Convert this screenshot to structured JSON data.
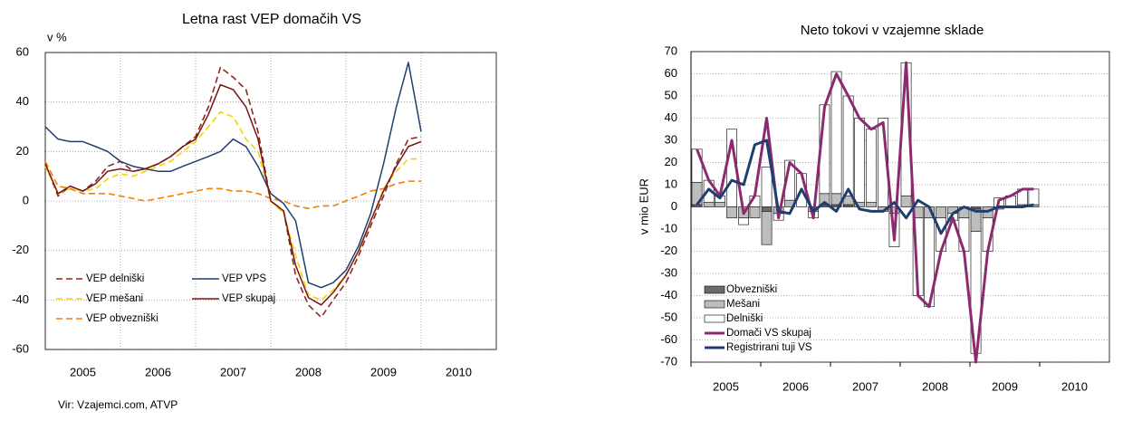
{
  "chart_data": [
    {
      "type": "line",
      "title": "Letna rast VEP domačih VS",
      "y_label": "v %",
      "source": "Vir: Vzajemci.com, ATVP",
      "x": [
        2005,
        2005.17,
        2005.33,
        2005.5,
        2005.67,
        2005.83,
        2006,
        2006.17,
        2006.33,
        2006.5,
        2006.67,
        2006.83,
        2007,
        2007.17,
        2007.33,
        2007.5,
        2007.67,
        2007.83,
        2008,
        2008.17,
        2008.33,
        2008.5,
        2008.67,
        2008.83,
        2009,
        2009.17,
        2009.33,
        2009.5,
        2009.67,
        2009.83,
        2010
      ],
      "xlim": [
        2005,
        2011
      ],
      "xticks": [
        2005,
        2006,
        2007,
        2008,
        2009,
        2010
      ],
      "ylim": [
        -60,
        60
      ],
      "yticks": [
        -60,
        -40,
        -20,
        0,
        20,
        40,
        60
      ],
      "grid": true,
      "series": [
        {
          "name": "VEP delniški",
          "color": "#8b2a1a",
          "dash": true,
          "values": [
            15,
            2,
            6,
            4,
            8,
            14,
            16,
            12,
            13,
            15,
            18,
            22,
            26,
            38,
            54,
            50,
            45,
            28,
            0,
            -4,
            -30,
            -42,
            -47,
            -40,
            -33,
            -22,
            -10,
            2,
            15,
            25,
            26
          ]
        },
        {
          "name": "VEP mešani",
          "color": "#f5d400",
          "dash": true,
          "values": [
            14,
            3,
            5,
            4,
            5,
            9,
            11,
            10,
            12,
            14,
            16,
            20,
            24,
            30,
            36,
            34,
            25,
            20,
            0,
            -5,
            -22,
            -38,
            -40,
            -36,
            -30,
            -20,
            -8,
            5,
            12,
            17,
            17
          ]
        },
        {
          "name": "VEP obvezniški",
          "color": "#f07f0b",
          "dash": true,
          "values": [
            16,
            6,
            5,
            3,
            3,
            3,
            2,
            1,
            0,
            1,
            2,
            3,
            4,
            5,
            5,
            4,
            4,
            3,
            1,
            0,
            -2,
            -3,
            -2,
            -2,
            0,
            2,
            4,
            5,
            7,
            8,
            8
          ]
        },
        {
          "name": "VEP VPS",
          "color": "#1f3f6e",
          "dash": false,
          "values": [
            30,
            25,
            24,
            24,
            22,
            20,
            16,
            14,
            13,
            12,
            12,
            14,
            16,
            18,
            20,
            25,
            22,
            14,
            3,
            -1,
            -8,
            -33,
            -35,
            -33,
            -28,
            -18,
            -5,
            15,
            38,
            56,
            28
          ]
        },
        {
          "name": "VEP skupaj",
          "color": "#7a1515",
          "dash": false,
          "values": [
            15,
            3,
            6,
            4,
            7,
            12,
            13,
            12,
            13,
            15,
            18,
            22,
            25,
            35,
            47,
            45,
            38,
            25,
            0,
            -4,
            -26,
            -39,
            -42,
            -37,
            -30,
            -20,
            -8,
            4,
            14,
            22,
            24
          ]
        }
      ]
    },
    {
      "type": "combo",
      "title": "Neto tokovi v vzajemne sklade",
      "y_label": "v mio EUR",
      "x": [
        2005,
        2005.17,
        2005.33,
        2005.5,
        2005.67,
        2005.83,
        2006,
        2006.17,
        2006.33,
        2006.5,
        2006.67,
        2006.83,
        2007,
        2007.17,
        2007.33,
        2007.5,
        2007.67,
        2007.83,
        2008,
        2008.17,
        2008.33,
        2008.5,
        2008.67,
        2008.83,
        2009,
        2009.17,
        2009.33,
        2009.5,
        2009.67,
        2009.83
      ],
      "xlim": [
        2005,
        2011
      ],
      "xticks": [
        2005,
        2006,
        2007,
        2008,
        2009,
        2010
      ],
      "ylim": [
        -70,
        70
      ],
      "yticks": [
        -70,
        -60,
        -50,
        -40,
        -30,
        -20,
        -10,
        0,
        10,
        20,
        30,
        40,
        50,
        60,
        70
      ],
      "grid": true,
      "series": [
        {
          "name": "Obvezniški",
          "type": "bar",
          "color": "#6b6b6b",
          "values": [
            1,
            0,
            0,
            0,
            0,
            0,
            -2,
            0,
            0,
            0,
            0,
            1,
            1,
            1,
            0,
            0,
            0,
            0,
            0,
            0,
            0,
            0,
            0,
            0,
            -1,
            0,
            0,
            0,
            0,
            0
          ]
        },
        {
          "name": "Mešani",
          "type": "bar",
          "color": "#bdbdbd",
          "values": [
            10,
            2,
            2,
            -5,
            -5,
            -5,
            -15,
            -3,
            3,
            0,
            -2,
            5,
            5,
            4,
            2,
            2,
            -2,
            -3,
            5,
            -5,
            -5,
            -5,
            -3,
            -5,
            -10,
            -5,
            -1,
            0,
            1,
            1
          ]
        },
        {
          "name": "Delniški",
          "type": "bar",
          "color": "#ffffff",
          "values": [
            15,
            10,
            3,
            35,
            -3,
            5,
            18,
            -3,
            18,
            15,
            -3,
            40,
            55,
            45,
            38,
            33,
            40,
            -15,
            60,
            -35,
            -40,
            -15,
            -3,
            -15,
            -55,
            -15,
            4,
            5,
            7,
            7
          ]
        },
        {
          "name": "Domači VS skupaj",
          "type": "line",
          "color": "#8b2a6e",
          "values": [
            26,
            12,
            5,
            30,
            -3,
            5,
            40,
            -5,
            20,
            15,
            -5,
            45,
            60,
            50,
            40,
            35,
            38,
            -15,
            65,
            -40,
            -45,
            -20,
            -5,
            -20,
            -70,
            -20,
            3,
            5,
            8,
            8
          ]
        },
        {
          "name": "Registrirani tuji VS",
          "type": "line",
          "color": "#1f3f6e",
          "values": [
            1,
            8,
            4,
            12,
            10,
            28,
            30,
            -2,
            -3,
            8,
            -2,
            2,
            -2,
            8,
            -1,
            -2,
            -2,
            2,
            -5,
            3,
            0,
            -12,
            -3,
            0,
            -2,
            -2,
            0,
            0,
            0,
            1
          ]
        }
      ]
    }
  ]
}
